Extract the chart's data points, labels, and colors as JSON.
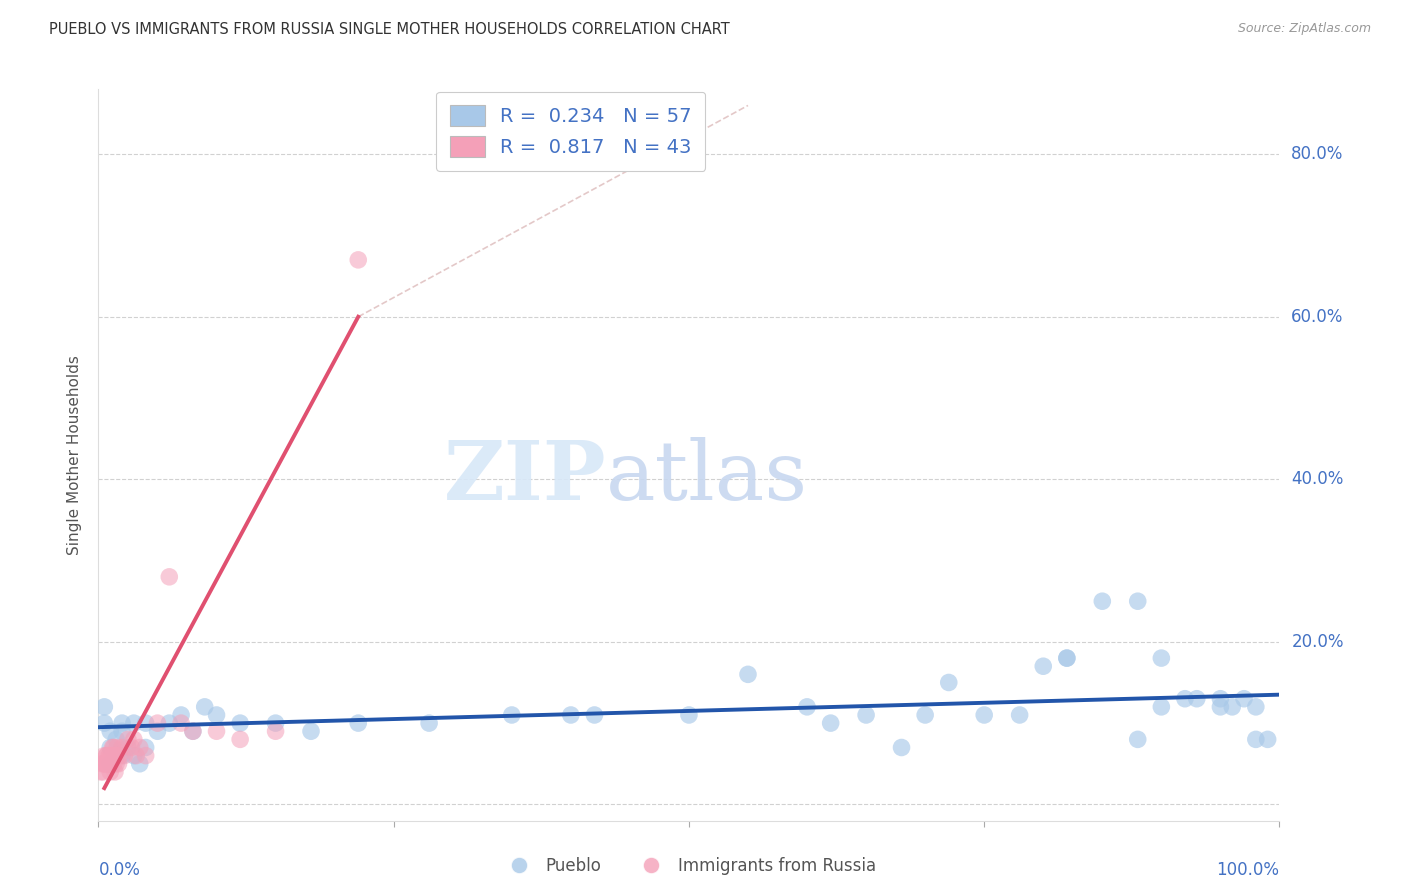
{
  "title": "PUEBLO VS IMMIGRANTS FROM RUSSIA SINGLE MOTHER HOUSEHOLDS CORRELATION CHART",
  "source": "Source: ZipAtlas.com",
  "ylabel": "Single Mother Households",
  "blue_color": "#a8c8e8",
  "pink_color": "#f4a0b8",
  "blue_line_color": "#2255aa",
  "pink_line_color": "#e05070",
  "diag_line_color": "#ddbbbb",
  "legend_text_color": "#4472c4",
  "ytick_color": "#4472c4",
  "xtick_color": "#4472c4",
  "title_color": "#333333",
  "source_color": "#999999",
  "watermark_zip_color": "#d8e8f8",
  "watermark_atlas_color": "#c8d8f0",
  "xlim": [
    0.0,
    1.0
  ],
  "ylim": [
    -0.02,
    0.88
  ],
  "yticks": [
    0.0,
    0.2,
    0.4,
    0.6,
    0.8
  ],
  "ytick_labels": [
    "",
    "20.0%",
    "40.0%",
    "60.0%",
    "80.0%"
  ],
  "xticks": [
    0.0,
    0.25,
    0.5,
    0.75,
    1.0
  ],
  "blue_scatter_x": [
    0.005,
    0.01,
    0.015,
    0.02,
    0.005,
    0.01,
    0.015,
    0.02,
    0.025,
    0.03,
    0.035,
    0.04,
    0.01,
    0.02,
    0.03,
    0.04,
    0.05,
    0.06,
    0.07,
    0.08,
    0.09,
    0.1,
    0.12,
    0.15,
    0.18,
    0.22,
    0.28,
    0.35,
    0.42,
    0.5,
    0.55,
    0.6,
    0.65,
    0.7,
    0.72,
    0.75,
    0.8,
    0.82,
    0.85,
    0.88,
    0.9,
    0.92,
    0.93,
    0.95,
    0.96,
    0.97,
    0.98,
    0.99,
    0.62,
    0.68,
    0.78,
    0.82,
    0.88,
    0.9,
    0.95,
    0.98,
    0.4
  ],
  "blue_scatter_y": [
    0.12,
    0.07,
    0.08,
    0.09,
    0.1,
    0.09,
    0.06,
    0.1,
    0.07,
    0.06,
    0.05,
    0.07,
    0.05,
    0.06,
    0.1,
    0.1,
    0.09,
    0.1,
    0.11,
    0.09,
    0.12,
    0.11,
    0.1,
    0.1,
    0.09,
    0.1,
    0.1,
    0.11,
    0.11,
    0.11,
    0.16,
    0.12,
    0.11,
    0.11,
    0.15,
    0.11,
    0.17,
    0.18,
    0.25,
    0.25,
    0.18,
    0.13,
    0.13,
    0.13,
    0.12,
    0.13,
    0.12,
    0.08,
    0.1,
    0.07,
    0.11,
    0.18,
    0.08,
    0.12,
    0.12,
    0.08,
    0.11
  ],
  "pink_scatter_x": [
    0.002,
    0.003,
    0.004,
    0.005,
    0.006,
    0.007,
    0.008,
    0.005,
    0.006,
    0.007,
    0.008,
    0.009,
    0.01,
    0.01,
    0.012,
    0.013,
    0.014,
    0.015,
    0.01,
    0.011,
    0.012,
    0.013,
    0.014,
    0.015,
    0.016,
    0.017,
    0.018,
    0.02,
    0.022,
    0.025,
    0.028,
    0.03,
    0.032,
    0.035,
    0.04,
    0.05,
    0.06,
    0.07,
    0.08,
    0.1,
    0.12,
    0.15,
    0.22
  ],
  "pink_scatter_y": [
    0.04,
    0.05,
    0.04,
    0.05,
    0.05,
    0.06,
    0.05,
    0.06,
    0.05,
    0.06,
    0.05,
    0.06,
    0.05,
    0.04,
    0.06,
    0.05,
    0.04,
    0.05,
    0.06,
    0.05,
    0.07,
    0.07,
    0.06,
    0.06,
    0.07,
    0.05,
    0.06,
    0.07,
    0.06,
    0.08,
    0.07,
    0.08,
    0.06,
    0.07,
    0.06,
    0.1,
    0.28,
    0.1,
    0.09,
    0.09,
    0.08,
    0.09,
    0.67
  ],
  "blue_trendline_x": [
    0.0,
    1.0
  ],
  "blue_trendline_y": [
    0.095,
    0.135
  ],
  "pink_trendline_x": [
    0.005,
    0.22
  ],
  "pink_trendline_y": [
    0.02,
    0.6
  ],
  "diag_line_x": [
    0.22,
    0.55
  ],
  "diag_line_y": [
    0.6,
    0.86
  ]
}
